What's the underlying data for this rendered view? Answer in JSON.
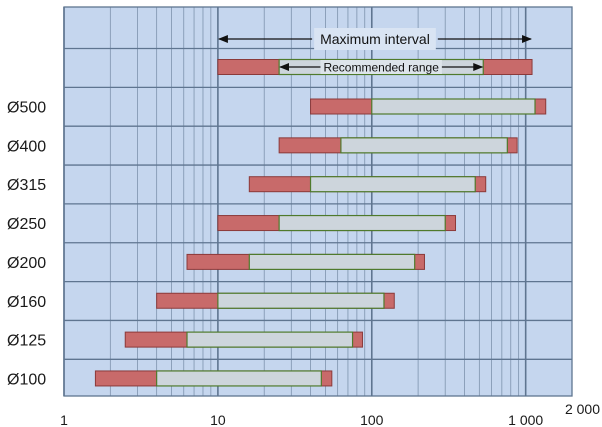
{
  "chart_data": {
    "type": "bar",
    "subtype": "floating-range",
    "x_scale": "log",
    "xlim": [
      1,
      2000
    ],
    "x_ticks": [
      {
        "value": 1,
        "label": "1"
      },
      {
        "value": 10,
        "label": "10"
      },
      {
        "value": 100,
        "label": "100"
      },
      {
        "value": 1000,
        "label": "1 000"
      },
      {
        "value": 2000,
        "label": "2 000"
      }
    ],
    "grid": true,
    "legend": {
      "max_label": "Maximum interval",
      "rec_label": "Recommended range",
      "max_min": 10,
      "max_max": 1100,
      "rec_min": 25,
      "rec_max": 530
    },
    "categories": [
      "Ø500",
      "Ø400",
      "Ø315",
      "Ø250",
      "Ø200",
      "Ø160",
      "Ø125",
      "Ø100"
    ],
    "rows": [
      {
        "label": "Ø500",
        "max_min": 40,
        "max_max": 1350,
        "rec_min": 100,
        "rec_max": 1150
      },
      {
        "label": "Ø400",
        "max_min": 25,
        "max_max": 880,
        "rec_min": 63,
        "rec_max": 760
      },
      {
        "label": "Ø315",
        "max_min": 16,
        "max_max": 550,
        "rec_min": 40,
        "rec_max": 470
      },
      {
        "label": "Ø250",
        "max_min": 10,
        "max_max": 350,
        "rec_min": 25,
        "rec_max": 300
      },
      {
        "label": "Ø200",
        "max_min": 6.3,
        "max_max": 220,
        "rec_min": 16,
        "rec_max": 190
      },
      {
        "label": "Ø160",
        "max_min": 4,
        "max_max": 140,
        "rec_min": 10,
        "rec_max": 120
      },
      {
        "label": "Ø125",
        "max_min": 2.5,
        "max_max": 87,
        "rec_min": 6.3,
        "rec_max": 75
      },
      {
        "label": "Ø100",
        "max_min": 1.6,
        "max_max": 55,
        "rec_min": 4,
        "rec_max": 47
      }
    ],
    "colors": {
      "background": "#c5d6ee",
      "grid": "#7e93ad",
      "major_grid": "#5f7590",
      "max_fill": "#c86a6a",
      "max_stroke": "#8b3a3a",
      "rec_fill": "#cdd5dc",
      "rec_stroke": "#4f7a2c"
    }
  }
}
